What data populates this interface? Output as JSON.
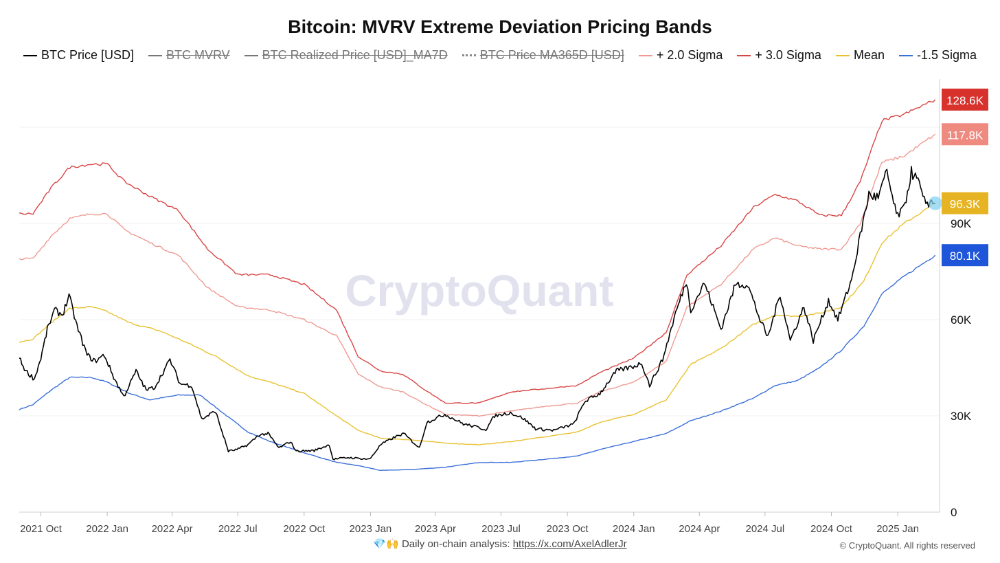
{
  "chart_data": {
    "type": "line",
    "title": "Bitcoin: MVRV Extreme Deviation Pricing Bands",
    "watermark": "CryptoQuant",
    "x_range": [
      "2021-09-01",
      "2025-02-28"
    ],
    "ylim": [
      0,
      135000
    ],
    "x_tick_labels": [
      "2021 Oct",
      "2022 Jan",
      "2022 Apr",
      "2022 Jul",
      "2022 Oct",
      "2023 Jan",
      "2023 Apr",
      "2023 Jul",
      "2023 Oct",
      "2024 Jan",
      "2024 Apr",
      "2024 Jul",
      "2024 Oct",
      "2025 Jan"
    ],
    "x_tick_dates": [
      "2021-10-01",
      "2022-01-01",
      "2022-04-01",
      "2022-07-01",
      "2022-10-01",
      "2023-01-01",
      "2023-04-01",
      "2023-07-01",
      "2023-10-01",
      "2024-01-01",
      "2024-04-01",
      "2024-07-01",
      "2024-10-01",
      "2025-01-01"
    ],
    "y_ticks": [
      {
        "value": 0,
        "label": "0"
      },
      {
        "value": 30000,
        "label": "30K"
      },
      {
        "value": 60000,
        "label": "60K"
      },
      {
        "value": 90000,
        "label": "90K"
      }
    ],
    "grid": true,
    "legend_position": "top",
    "legend": [
      {
        "name": "BTC Price [USD]",
        "color": "#000000",
        "active": true,
        "style": "solid"
      },
      {
        "name": "BTC MVRV",
        "color": "#777777",
        "active": false,
        "style": "solid"
      },
      {
        "name": "BTC Realized Price [USD]_MA7D",
        "color": "#777777",
        "active": false,
        "style": "solid"
      },
      {
        "name": "BTC Price MA365D [USD]",
        "color": "#888888",
        "active": false,
        "style": "dotted"
      },
      {
        "name": "+ 2.0 Sigma",
        "color": "#ef9a92",
        "active": true,
        "style": "solid"
      },
      {
        "name": "+ 3.0 Sigma",
        "color": "#d94545",
        "active": true,
        "style": "solid"
      },
      {
        "name": "Mean",
        "color": "#e8c232",
        "active": true,
        "style": "solid"
      },
      {
        "name": "-1.5 Sigma",
        "color": "#3b6fd9",
        "active": true,
        "style": "solid"
      }
    ],
    "series": [
      {
        "name": "BTC Price [USD]",
        "color": "#000000",
        "points": [
          [
            "2021-09-01",
            48000
          ],
          [
            "2021-09-10",
            44000
          ],
          [
            "2021-09-22",
            41500
          ],
          [
            "2021-10-01",
            48000
          ],
          [
            "2021-10-10",
            57000
          ],
          [
            "2021-10-20",
            63000
          ],
          [
            "2021-10-31",
            61500
          ],
          [
            "2021-11-09",
            67500
          ],
          [
            "2021-11-20",
            58000
          ],
          [
            "2021-12-04",
            49000
          ],
          [
            "2021-12-15",
            47000
          ],
          [
            "2021-12-28",
            49000
          ],
          [
            "2022-01-10",
            42000
          ],
          [
            "2022-01-24",
            36000
          ],
          [
            "2022-02-10",
            44000
          ],
          [
            "2022-02-24",
            38000
          ],
          [
            "2022-03-08",
            39000
          ],
          [
            "2022-03-29",
            47500
          ],
          [
            "2022-04-12",
            40000
          ],
          [
            "2022-04-28",
            39500
          ],
          [
            "2022-05-12",
            29000
          ],
          [
            "2022-05-31",
            31500
          ],
          [
            "2022-06-13",
            22500
          ],
          [
            "2022-06-18",
            19000
          ],
          [
            "2022-06-30",
            19500
          ],
          [
            "2022-07-15",
            21000
          ],
          [
            "2022-07-30",
            24000
          ],
          [
            "2022-08-12",
            24500
          ],
          [
            "2022-08-27",
            20000
          ],
          [
            "2022-09-12",
            22000
          ],
          [
            "2022-09-20",
            19000
          ],
          [
            "2022-10-15",
            19200
          ],
          [
            "2022-11-05",
            21000
          ],
          [
            "2022-11-10",
            16500
          ],
          [
            "2022-12-01",
            17000
          ],
          [
            "2022-12-31",
            16500
          ],
          [
            "2023-01-15",
            21000
          ],
          [
            "2023-01-31",
            23000
          ],
          [
            "2023-02-16",
            24500
          ],
          [
            "2023-03-10",
            20000
          ],
          [
            "2023-03-20",
            28000
          ],
          [
            "2023-04-14",
            30500
          ],
          [
            "2023-05-10",
            27500
          ],
          [
            "2023-06-10",
            25800
          ],
          [
            "2023-06-22",
            30000
          ],
          [
            "2023-07-14",
            31000
          ],
          [
            "2023-08-01",
            29200
          ],
          [
            "2023-08-18",
            26000
          ],
          [
            "2023-09-12",
            25500
          ],
          [
            "2023-10-10",
            27500
          ],
          [
            "2023-10-25",
            34500
          ],
          [
            "2023-11-15",
            37000
          ],
          [
            "2023-12-08",
            44000
          ],
          [
            "2024-01-02",
            45500
          ],
          [
            "2024-01-12",
            46500
          ],
          [
            "2024-01-23",
            39500
          ],
          [
            "2024-02-10",
            47500
          ],
          [
            "2024-02-28",
            62000
          ],
          [
            "2024-03-14",
            72000
          ],
          [
            "2024-03-20",
            63000
          ],
          [
            "2024-04-08",
            71500
          ],
          [
            "2024-04-20",
            64000
          ],
          [
            "2024-05-01",
            57000
          ],
          [
            "2024-05-21",
            71000
          ],
          [
            "2024-06-07",
            71000
          ],
          [
            "2024-06-24",
            60000
          ],
          [
            "2024-07-05",
            54500
          ],
          [
            "2024-07-22",
            68000
          ],
          [
            "2024-08-05",
            53500
          ],
          [
            "2024-08-24",
            64000
          ],
          [
            "2024-09-06",
            53500
          ],
          [
            "2024-09-27",
            66000
          ],
          [
            "2024-10-10",
            60000
          ],
          [
            "2024-10-29",
            72500
          ],
          [
            "2024-11-12",
            88500
          ],
          [
            "2024-11-22",
            99000
          ],
          [
            "2024-12-05",
            98000
          ],
          [
            "2024-12-17",
            106000
          ],
          [
            "2024-12-30",
            92500
          ],
          [
            "2025-01-09",
            94000
          ],
          [
            "2025-01-20",
            106000
          ],
          [
            "2025-01-31",
            102500
          ],
          [
            "2025-02-05",
            97000
          ],
          [
            "2025-02-15",
            96500
          ],
          [
            "2025-02-22",
            96300
          ]
        ]
      },
      {
        "name": "+ 2.0 Sigma",
        "color": "#ef9a92",
        "points": [
          [
            "2021-09-01",
            79000
          ],
          [
            "2021-09-20",
            79000
          ],
          [
            "2021-10-15",
            86000
          ],
          [
            "2021-11-10",
            91500
          ],
          [
            "2021-12-10",
            93000
          ],
          [
            "2022-01-01",
            93000
          ],
          [
            "2022-01-25",
            88000
          ],
          [
            "2022-03-01",
            84000
          ],
          [
            "2022-04-10",
            80000
          ],
          [
            "2022-05-20",
            70000
          ],
          [
            "2022-07-01",
            64000
          ],
          [
            "2022-08-15",
            63000
          ],
          [
            "2022-10-01",
            60000
          ],
          [
            "2022-11-15",
            55000
          ],
          [
            "2022-12-15",
            43000
          ],
          [
            "2023-01-15",
            39000
          ],
          [
            "2023-02-15",
            37500
          ],
          [
            "2023-03-15",
            34000
          ],
          [
            "2023-04-15",
            30500
          ],
          [
            "2023-06-01",
            30000
          ],
          [
            "2023-07-15",
            31500
          ],
          [
            "2023-09-01",
            33000
          ],
          [
            "2023-10-15",
            34000
          ],
          [
            "2023-11-15",
            37500
          ],
          [
            "2024-01-01",
            40500
          ],
          [
            "2024-02-15",
            47000
          ],
          [
            "2024-03-15",
            64000
          ],
          [
            "2024-05-01",
            71000
          ],
          [
            "2024-06-15",
            82000
          ],
          [
            "2024-07-15",
            85500
          ],
          [
            "2024-08-15",
            83000
          ],
          [
            "2024-09-15",
            82000
          ],
          [
            "2024-10-15",
            82000
          ],
          [
            "2024-11-10",
            90000
          ],
          [
            "2024-12-10",
            109000
          ],
          [
            "2025-01-10",
            111000
          ],
          [
            "2025-02-22",
            117800
          ]
        ]
      },
      {
        "name": "+ 3.0 Sigma",
        "color": "#d94545",
        "points": [
          [
            "2021-09-01",
            93000
          ],
          [
            "2021-09-20",
            93000
          ],
          [
            "2021-10-15",
            101000
          ],
          [
            "2021-11-10",
            107500
          ],
          [
            "2021-12-10",
            108500
          ],
          [
            "2022-01-01",
            108500
          ],
          [
            "2022-01-25",
            103000
          ],
          [
            "2022-03-01",
            98500
          ],
          [
            "2022-04-10",
            94000
          ],
          [
            "2022-05-20",
            82000
          ],
          [
            "2022-07-01",
            74000
          ],
          [
            "2022-08-15",
            74000
          ],
          [
            "2022-10-01",
            71000
          ],
          [
            "2022-11-15",
            63000
          ],
          [
            "2022-12-15",
            48500
          ],
          [
            "2023-01-15",
            44000
          ],
          [
            "2023-02-15",
            43000
          ],
          [
            "2023-03-15",
            38500
          ],
          [
            "2023-04-15",
            34000
          ],
          [
            "2023-06-01",
            34000
          ],
          [
            "2023-07-15",
            37500
          ],
          [
            "2023-09-01",
            38500
          ],
          [
            "2023-10-15",
            39500
          ],
          [
            "2023-11-15",
            43500
          ],
          [
            "2024-01-01",
            48000
          ],
          [
            "2024-02-15",
            56000
          ],
          [
            "2024-03-15",
            74000
          ],
          [
            "2024-05-01",
            83000
          ],
          [
            "2024-06-15",
            95000
          ],
          [
            "2024-07-15",
            99000
          ],
          [
            "2024-08-15",
            97000
          ],
          [
            "2024-09-15",
            92500
          ],
          [
            "2024-10-15",
            92500
          ],
          [
            "2024-11-10",
            103000
          ],
          [
            "2024-12-10",
            122000
          ],
          [
            "2025-01-10",
            124000
          ],
          [
            "2025-02-22",
            128600
          ]
        ]
      },
      {
        "name": "Mean",
        "color": "#e8c232",
        "points": [
          [
            "2021-09-01",
            53000
          ],
          [
            "2021-09-20",
            54000
          ],
          [
            "2021-10-15",
            59000
          ],
          [
            "2021-11-10",
            63500
          ],
          [
            "2021-12-10",
            64000
          ],
          [
            "2022-01-01",
            62500
          ],
          [
            "2022-02-01",
            59000
          ],
          [
            "2022-03-15",
            56500
          ],
          [
            "2022-04-20",
            53000
          ],
          [
            "2022-06-01",
            48500
          ],
          [
            "2022-07-15",
            42500
          ],
          [
            "2022-08-15",
            40500
          ],
          [
            "2022-10-01",
            37000
          ],
          [
            "2022-11-15",
            30000
          ],
          [
            "2022-12-15",
            25500
          ],
          [
            "2023-01-15",
            23000
          ],
          [
            "2023-03-01",
            22500
          ],
          [
            "2023-04-15",
            21500
          ],
          [
            "2023-06-01",
            21000
          ],
          [
            "2023-07-15",
            22000
          ],
          [
            "2023-09-01",
            23500
          ],
          [
            "2023-10-15",
            25000
          ],
          [
            "2023-11-15",
            28000
          ],
          [
            "2024-01-01",
            30500
          ],
          [
            "2024-02-15",
            35000
          ],
          [
            "2024-03-20",
            46000
          ],
          [
            "2024-05-01",
            51000
          ],
          [
            "2024-06-15",
            58500
          ],
          [
            "2024-07-15",
            61500
          ],
          [
            "2024-08-15",
            61000
          ],
          [
            "2024-09-15",
            62000
          ],
          [
            "2024-10-15",
            64000
          ],
          [
            "2024-11-15",
            72000
          ],
          [
            "2024-12-10",
            84000
          ],
          [
            "2025-01-10",
            90000
          ],
          [
            "2025-02-22",
            96300
          ]
        ]
      },
      {
        "name": "-1.5 Sigma",
        "color": "#3b6fd9",
        "points": [
          [
            "2021-09-01",
            32000
          ],
          [
            "2021-09-20",
            33500
          ],
          [
            "2021-10-15",
            38000
          ],
          [
            "2021-11-10",
            42000
          ],
          [
            "2021-12-10",
            42000
          ],
          [
            "2022-01-01",
            40500
          ],
          [
            "2022-02-01",
            37000
          ],
          [
            "2022-03-01",
            35000
          ],
          [
            "2022-04-10",
            36500
          ],
          [
            "2022-05-10",
            36500
          ],
          [
            "2022-06-10",
            31000
          ],
          [
            "2022-07-15",
            25000
          ],
          [
            "2022-08-15",
            22000
          ],
          [
            "2022-10-01",
            18500
          ],
          [
            "2022-11-15",
            15500
          ],
          [
            "2022-12-15",
            14500
          ],
          [
            "2023-01-15",
            13000
          ],
          [
            "2023-03-01",
            13300
          ],
          [
            "2023-04-15",
            14000
          ],
          [
            "2023-06-01",
            15500
          ],
          [
            "2023-07-15",
            15500
          ],
          [
            "2023-09-01",
            16500
          ],
          [
            "2023-10-15",
            17500
          ],
          [
            "2023-11-15",
            19500
          ],
          [
            "2024-01-01",
            22000
          ],
          [
            "2024-02-15",
            24500
          ],
          [
            "2024-03-20",
            28500
          ],
          [
            "2024-05-01",
            31500
          ],
          [
            "2024-06-15",
            35500
          ],
          [
            "2024-07-15",
            39500
          ],
          [
            "2024-08-15",
            41000
          ],
          [
            "2024-09-15",
            45000
          ],
          [
            "2024-10-15",
            50500
          ],
          [
            "2024-11-15",
            58000
          ],
          [
            "2024-12-10",
            68000
          ],
          [
            "2025-01-10",
            73500
          ],
          [
            "2025-02-22",
            80100
          ]
        ]
      }
    ],
    "value_badges": [
      {
        "series": "+ 3.0 Sigma",
        "value": 128600,
        "label": "128.6K",
        "color": "#d8322c"
      },
      {
        "series": "+ 2.0 Sigma",
        "value": 117800,
        "label": "117.8K",
        "color": "#ef8a80"
      },
      {
        "series": "Mean",
        "value": 96300,
        "label": "96.3K",
        "color": "#e6b422"
      },
      {
        "series": "-1.5 Sigma",
        "value": 80100,
        "label": "80.1K",
        "color": "#1f55d8"
      }
    ]
  },
  "footer": {
    "emoji": "💎🙌",
    "text": "Daily on-chain analysis:",
    "link": "https://x.com/AxelAdlerJr",
    "copyright": "© CryptoQuant. All rights reserved"
  }
}
